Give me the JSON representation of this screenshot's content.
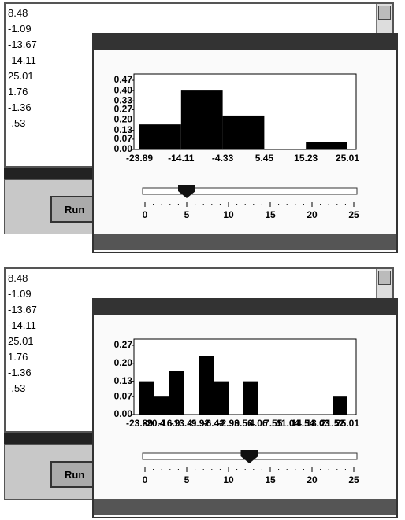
{
  "panels": [
    {
      "list": [
        "8.48",
        "-1.09",
        "-13.67",
        "-14.11",
        "25.01",
        "1.76",
        "-1.36",
        "-.53"
      ],
      "button": "Run",
      "histogram": {
        "type": "bar",
        "bins": [
          -23.89,
          -14.11,
          -4.33,
          5.45,
          15.23,
          25.01
        ],
        "values": [
          0.17,
          0.4,
          0.23,
          0,
          0.05
        ],
        "color": "#000000",
        "xlim": [
          -23.89,
          25.01
        ],
        "ylim": [
          0,
          0.47
        ],
        "yticks": [
          {
            "value": 0,
            "label": "0.00"
          },
          0.07,
          0.13,
          {
            "value": 0.2,
            "label": "0.20"
          },
          0.27,
          0.33,
          {
            "value": 0.4,
            "label": "0.40"
          },
          0.47
        ]
      },
      "slider": {
        "value": 5,
        "lim": [
          0,
          25
        ],
        "ticks": [
          0,
          5,
          10,
          15,
          20,
          25
        ]
      }
    },
    {
      "list": [
        "8.48",
        "-1.09",
        "-13.67",
        "-14.11",
        "25.01",
        "1.76",
        "-1.36",
        "-.53"
      ],
      "button": "Run",
      "histogram": {
        "type": "bar",
        "bins": [
          -23.89,
          -20.4,
          -16.9,
          -13.41,
          -9.92,
          -6.42,
          -2.93,
          0.56,
          4.06,
          7.55,
          11.04,
          14.54,
          18.03,
          21.52,
          25.01
        ],
        "values": [
          0.13,
          0.07,
          0.17,
          0,
          0.23,
          0.13,
          0,
          0.13,
          0,
          0,
          0,
          0,
          0,
          0.07
        ],
        "color": "#000000",
        "xlim": [
          -23.89,
          25.01
        ],
        "ylim": [
          0,
          0.27
        ],
        "yticks": [
          {
            "value": 0,
            "label": "0.00"
          },
          0.07,
          0.13,
          {
            "value": 0.2,
            "label": "0.20"
          },
          0.27
        ]
      },
      "slider": {
        "value": 12.5,
        "lim": [
          0,
          25
        ],
        "ticks": [
          0,
          5,
          10,
          15,
          20,
          25
        ]
      }
    }
  ]
}
